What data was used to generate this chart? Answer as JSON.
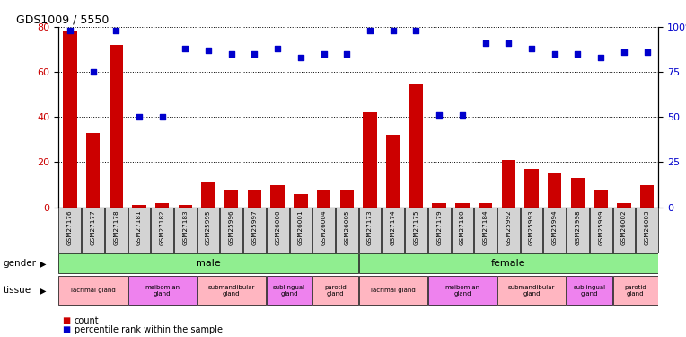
{
  "title": "GDS1009 / 5550",
  "samples": [
    "GSM27176",
    "GSM27177",
    "GSM27178",
    "GSM27181",
    "GSM27182",
    "GSM27183",
    "GSM25995",
    "GSM25996",
    "GSM25997",
    "GSM26000",
    "GSM26001",
    "GSM26004",
    "GSM26005",
    "GSM27173",
    "GSM27174",
    "GSM27175",
    "GSM27179",
    "GSM27180",
    "GSM27184",
    "GSM25992",
    "GSM25993",
    "GSM25994",
    "GSM25998",
    "GSM25999",
    "GSM26002",
    "GSM26003"
  ],
  "counts": [
    78,
    33,
    72,
    1,
    2,
    1,
    11,
    8,
    8,
    10,
    6,
    8,
    8,
    42,
    32,
    55,
    2,
    2,
    2,
    21,
    17,
    15,
    13,
    8,
    2,
    10
  ],
  "percentile": [
    98,
    75,
    98,
    50,
    50,
    88,
    87,
    85,
    85,
    88,
    83,
    85,
    85,
    98,
    98,
    98,
    51,
    51,
    91,
    91,
    88,
    85,
    85,
    83,
    86,
    86
  ],
  "gender_groups": [
    {
      "label": "male",
      "start": 0,
      "end": 13,
      "color": "#90EE90"
    },
    {
      "label": "female",
      "start": 13,
      "end": 26,
      "color": "#90EE90"
    }
  ],
  "tissue_groups": [
    {
      "label": "lacrimal gland",
      "start": 0,
      "end": 3,
      "color": "#FFB6C1"
    },
    {
      "label": "meibomian\ngland",
      "start": 3,
      "end": 6,
      "color": "#EE82EE"
    },
    {
      "label": "submandibular\ngland",
      "start": 6,
      "end": 9,
      "color": "#FFB6C1"
    },
    {
      "label": "sublingual\ngland",
      "start": 9,
      "end": 11,
      "color": "#EE82EE"
    },
    {
      "label": "parotid\ngland",
      "start": 11,
      "end": 13,
      "color": "#FFB6C1"
    },
    {
      "label": "lacrimal gland",
      "start": 13,
      "end": 16,
      "color": "#FFB6C1"
    },
    {
      "label": "meibomian\ngland",
      "start": 16,
      "end": 19,
      "color": "#EE82EE"
    },
    {
      "label": "submandibular\ngland",
      "start": 19,
      "end": 22,
      "color": "#FFB6C1"
    },
    {
      "label": "sublingual\ngland",
      "start": 22,
      "end": 24,
      "color": "#EE82EE"
    },
    {
      "label": "parotid\ngland",
      "start": 24,
      "end": 26,
      "color": "#FFB6C1"
    }
  ],
  "ylim_left": [
    0,
    80
  ],
  "ylim_right": [
    0,
    100
  ],
  "yticks_left": [
    0,
    20,
    40,
    60,
    80
  ],
  "yticks_right": [
    0,
    25,
    50,
    75,
    100
  ],
  "bar_color": "#CC0000",
  "dot_color": "#0000CC",
  "grid_color": "#000000",
  "bg_color": "#FFFFFF",
  "tick_label_bg": "#D3D3D3"
}
